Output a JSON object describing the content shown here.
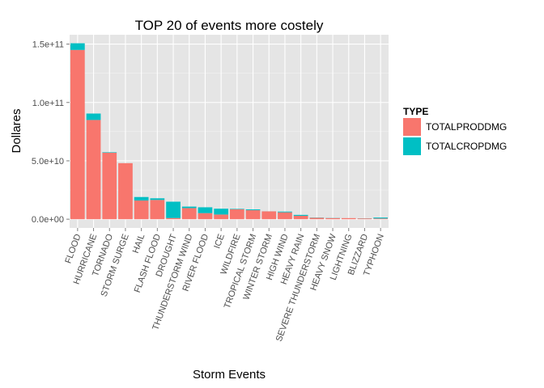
{
  "chart_data": {
    "type": "bar",
    "stacked": true,
    "title": "TOP 20 of events more costely",
    "xlabel": "Storm Events",
    "ylabel": "Dollares",
    "ylim": [
      -7500000000.0,
      158000000000.0
    ],
    "yticks": [
      0,
      50000000000.0,
      100000000000.0,
      150000000000.0
    ],
    "ytick_labels": [
      "0.0e+00",
      "5.0e+10",
      "1.0e+11",
      "1.5e+11"
    ],
    "grid": true,
    "legend": {
      "title": "TYPE",
      "placement": "right"
    },
    "categories": [
      "FLOOD",
      "HURRICANE",
      "TORNADO",
      "STORM SURGE",
      "HAIL",
      "FLASH FLOOD",
      "DROUGHT",
      "THUNDERSTORM WIND",
      "RIVER FLOOD",
      "ICE",
      "WILDFIRE",
      "TROPICAL STORM",
      "WINTER STORM",
      "HIGH WIND",
      "HEAVY RAIN",
      "SEVERE THUNDERSTORM",
      "HEAVY SNOW",
      "LIGHTNING",
      "BLIZZARD",
      "TYPHOON"
    ],
    "series": [
      {
        "name": "TOTALPRODDMG",
        "color": "#F8766D",
        "values": [
          145000000000.0,
          85000000000.0,
          57000000000.0,
          48000000000.0,
          16000000000.0,
          16500000000.0,
          1000000000.0,
          9500000000.0,
          5200000000.0,
          4000000000.0,
          8500000000.0,
          7700000000.0,
          6700000000.0,
          5900000000.0,
          2900000000.0,
          1200000000.0,
          950000000.0,
          930000000.0,
          660000000.0,
          600000000.0
        ]
      },
      {
        "name": "TOTALCROPDMG",
        "color": "#00BFC4",
        "values": [
          5700000000.0,
          5500000000.0,
          410000000.0,
          5000000.0,
          3000000000.0,
          1400000000.0,
          14000000000.0,
          1300000000.0,
          5000000000.0,
          5000000000.0,
          400000000.0,
          700000000.0,
          32000000.0,
          640000000.0,
          790000000.0,
          200000000.0,
          130000000.0,
          12000000.0,
          110000000.0,
          800000000.0
        ]
      }
    ]
  }
}
